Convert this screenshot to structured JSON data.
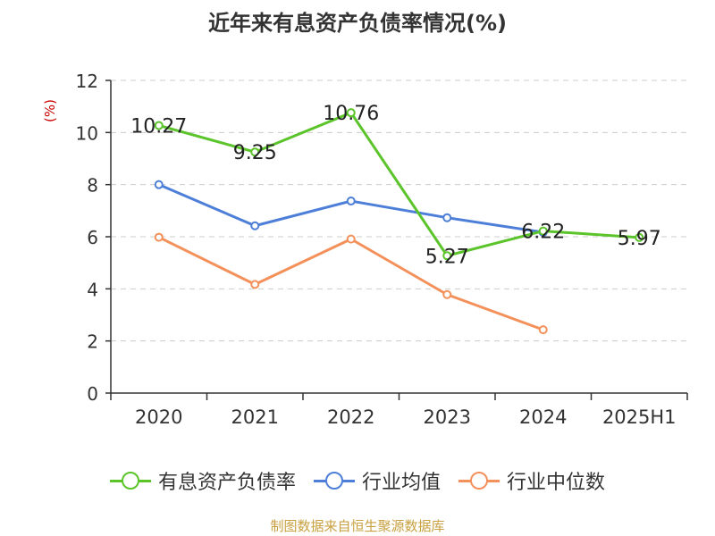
{
  "chart_data": {
    "type": "line",
    "title": "近年来有息资产负债率情况(%)",
    "ylabel": "(%)",
    "xlabel": "",
    "categories": [
      "2020",
      "2021",
      "2022",
      "2023",
      "2024",
      "2025H1"
    ],
    "ylim": [
      0,
      12
    ],
    "yticks": [
      0,
      2,
      4,
      6,
      8,
      10,
      12
    ],
    "grid": true,
    "legend_position": "bottom",
    "series": [
      {
        "name": "有息资产负债率",
        "color": "#5bc42a",
        "values": [
          10.27,
          9.25,
          10.76,
          5.27,
          6.22,
          5.97
        ],
        "labels": [
          "10.27",
          "9.25",
          "10.76",
          "5.27",
          "6.22",
          "5.97"
        ]
      },
      {
        "name": "行业均值",
        "color": "#4e7fd8",
        "values": [
          8.0,
          6.42,
          7.37,
          6.73,
          6.17,
          null
        ]
      },
      {
        "name": "行业中位数",
        "color": "#f4905a",
        "values": [
          5.98,
          4.17,
          5.91,
          3.78,
          2.43,
          null
        ]
      }
    ]
  },
  "source": "制图数据来自恒生聚源数据库"
}
